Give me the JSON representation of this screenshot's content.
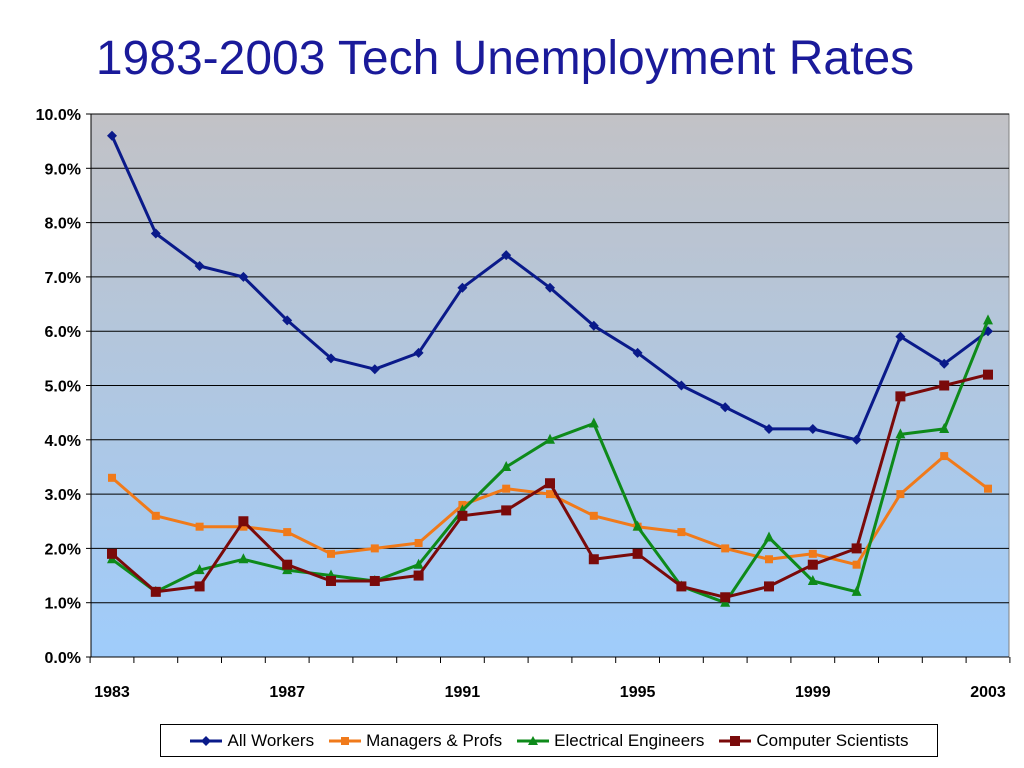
{
  "title": "1983-2003 Tech Unemployment Rates",
  "chart_data": {
    "type": "line",
    "title": "1983-2003 Tech Unemployment Rates",
    "xlabel": "",
    "ylabel": "",
    "ylim": [
      0,
      10
    ],
    "y_tick_labels": [
      "0.0%",
      "1.0%",
      "2.0%",
      "3.0%",
      "4.0%",
      "5.0%",
      "6.0%",
      "7.0%",
      "8.0%",
      "9.0%",
      "10.0%"
    ],
    "x_tick_labels": [
      "1983",
      "1987",
      "1991",
      "1995",
      "1999",
      "2003"
    ],
    "x": [
      1983,
      1984,
      1985,
      1986,
      1987,
      1988,
      1989,
      1990,
      1991,
      1992,
      1993,
      1994,
      1995,
      1996,
      1997,
      1998,
      1999,
      2000,
      2001,
      2002,
      2003
    ],
    "grid": true,
    "legend_position": "bottom",
    "series": [
      {
        "name": "All Workers",
        "color": "#0a1a8a",
        "marker": "diamond",
        "values": [
          9.6,
          7.8,
          7.2,
          7.0,
          6.2,
          5.5,
          5.3,
          5.6,
          6.8,
          7.4,
          6.8,
          6.1,
          5.6,
          5.0,
          4.6,
          4.2,
          4.2,
          4.0,
          5.9,
          5.4,
          6.0
        ]
      },
      {
        "name": "Managers & Profs",
        "color": "#f07a1a",
        "marker": "square",
        "values": [
          3.3,
          2.6,
          2.4,
          2.4,
          2.3,
          1.9,
          2.0,
          2.1,
          2.8,
          3.1,
          3.0,
          2.6,
          2.4,
          2.3,
          2.0,
          1.8,
          1.9,
          1.7,
          3.0,
          3.7,
          3.1
        ]
      },
      {
        "name": "Electrical Engineers",
        "color": "#0e8a1a",
        "marker": "triangle",
        "values": [
          1.8,
          1.2,
          1.6,
          1.8,
          1.6,
          1.5,
          1.4,
          1.7,
          2.7,
          3.5,
          4.0,
          4.3,
          2.4,
          1.3,
          1.0,
          2.2,
          1.4,
          1.2,
          4.1,
          4.2,
          6.2
        ]
      },
      {
        "name": "Computer Scientists",
        "color": "#7a0a0a",
        "marker": "square",
        "values": [
          1.9,
          1.2,
          1.3,
          2.5,
          1.7,
          1.4,
          1.4,
          1.5,
          2.6,
          2.7,
          3.2,
          1.8,
          1.9,
          1.3,
          1.1,
          1.3,
          1.7,
          2.0,
          4.8,
          5.0,
          5.2
        ]
      }
    ]
  }
}
